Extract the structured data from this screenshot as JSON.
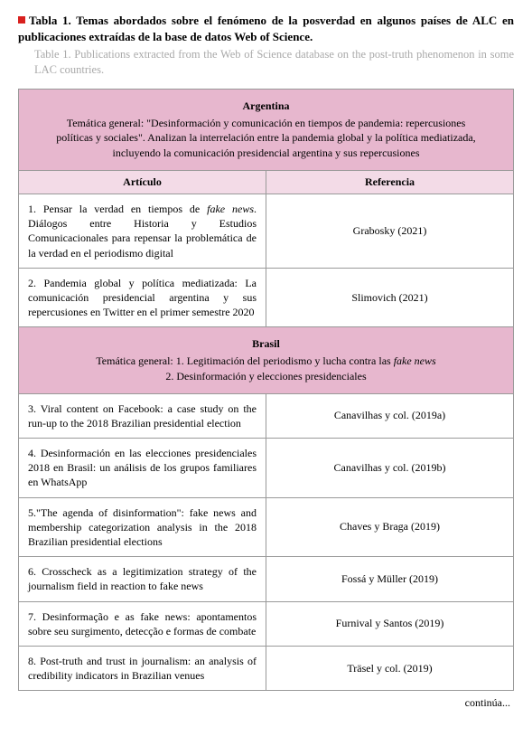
{
  "title": {
    "main": "Tabla 1. Temas abordados sobre el fenómeno de la posverdad en algunos países de ALC en publicaciones extraídas de la base de datos Web of Science.",
    "sub": "Table 1. Publications extracted from the Web of Science database on the post-truth phenomenon in some LAC countries."
  },
  "colors": {
    "header_bg": "#e7b7ce",
    "subheader_bg": "#f3dbe7",
    "border": "#999999",
    "marker": "#d8201e",
    "subtitle_text": "#a9a9a9"
  },
  "columns": {
    "articulo": "Artículo",
    "referencia": "Referencia"
  },
  "sections": [
    {
      "country": "Argentina",
      "theme_html": "Temática general: \"Desinformación y comunicación en tiempos de pandemia: repercusiones políticas y sociales\". Analizan la interrelación entre la pandemia global y la política mediatizada, incluyendo la comunicación presidencial argentina y sus repercusiones",
      "rows": [
        {
          "art_html": "1. Pensar la verdad en tiempos de <span class=\"italic\">fake news</span>. Diálogos entre Historia y Estudios Comunicacionales para repensar la problemática de la verdad en el periodismo digital",
          "ref": "Grabosky (2021)"
        },
        {
          "art_html": "2. Pandemia global y política mediatizada: La comunicación presidencial argentina y sus repercusiones en Twitter en el primer semestre 2020",
          "ref": "Slimovich (2021)"
        }
      ]
    },
    {
      "country": "Brasil",
      "theme_html": "Temática general: 1. Legitimación del periodismo y lucha contra las <span class=\"italic\">fake news</span><br>2. Desinformación y elecciones presidenciales",
      "rows": [
        {
          "art_html": "3. Viral content on Facebook: a case study on the run-up to the 2018 Brazilian presidential election",
          "ref": "Canavilhas y col. (2019a)"
        },
        {
          "art_html": "4. Desinformación en las elecciones presidenciales 2018 en Brasil: un análisis de los grupos familiares en WhatsApp",
          "ref": "Canavilhas y col. (2019b)"
        },
        {
          "art_html": "5.\"The agenda of disinformation\": fake news and membership categorization analysis in the 2018 Brazilian presidential elections",
          "ref": "Chaves y Braga (2019)"
        },
        {
          "art_html": "6. Crosscheck as a legitimization strategy of the journalism field in reaction to fake news",
          "ref": "Fossá y Müller (2019)"
        },
        {
          "art_html": "7. Desinformação e as fake news: apontamentos sobre seu surgimento, detecção e formas de combate",
          "ref": "Furnival y Santos (2019)"
        },
        {
          "art_html": "8.  Post-truth and trust in journalism: an analysis of credibility indicators in Brazilian venues",
          "ref": "Träsel y col. (2019)"
        }
      ]
    }
  ],
  "footer": "continúa..."
}
